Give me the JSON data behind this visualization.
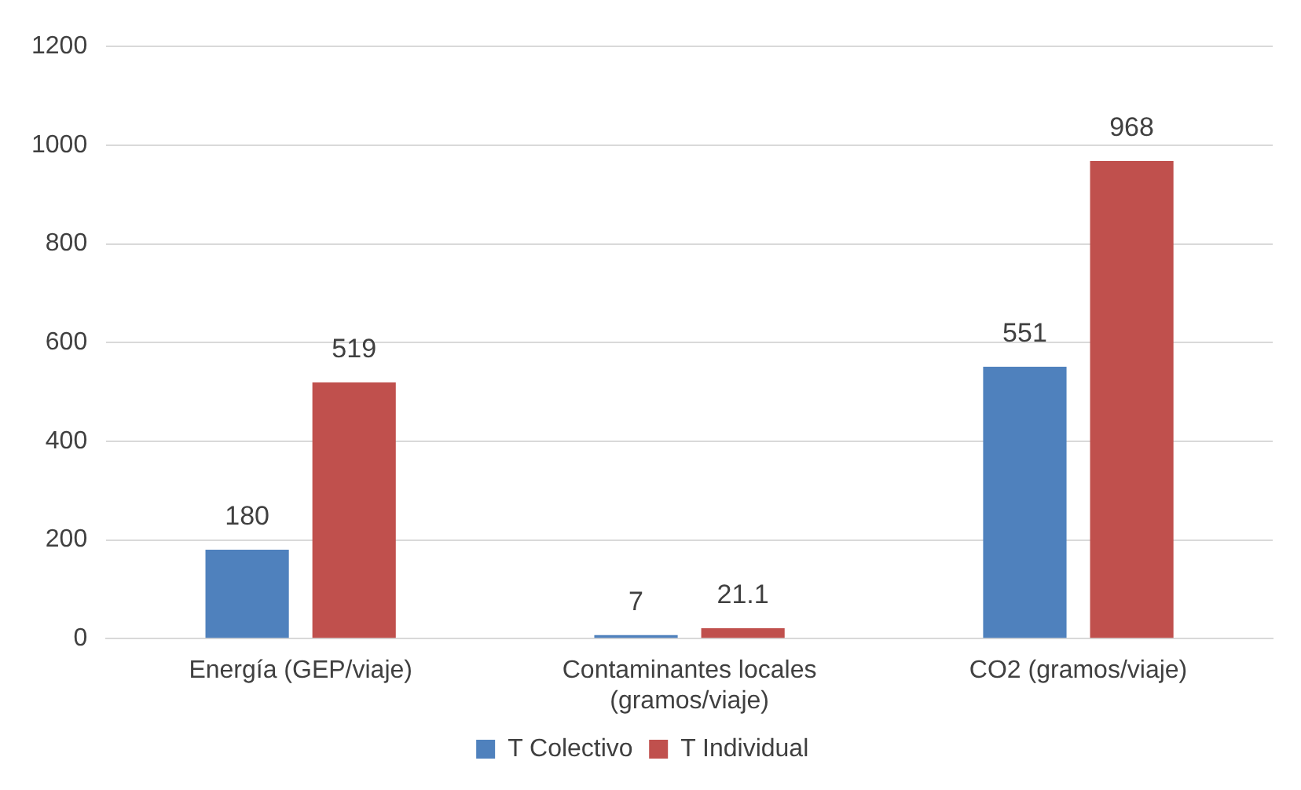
{
  "chart_data": {
    "type": "bar",
    "categories": [
      "Energía (GEP/viaje)",
      "Contaminantes locales (gramos/viaje)",
      "CO2 (gramos/viaje)"
    ],
    "series": [
      {
        "name": "T Colectivo",
        "color": "#4f81bd",
        "values": [
          180,
          7,
          551
        ]
      },
      {
        "name": "T Individual",
        "color": "#c0504d",
        "values": [
          519,
          21.1,
          968
        ]
      }
    ],
    "ylim": [
      0,
      1200
    ],
    "yticks": [
      0,
      200,
      400,
      600,
      800,
      1000,
      1200
    ],
    "grid": "y",
    "legend": "bottom",
    "data_labels": true
  }
}
